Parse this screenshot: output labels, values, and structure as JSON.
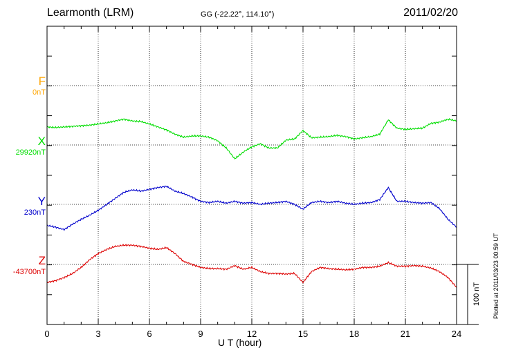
{
  "header": {
    "station": "Learmonth (LRM)",
    "coords": "GG (-22.22°, 114.10°)",
    "date": "2011/02/20"
  },
  "footer": {
    "plotted": "Plotted at 2011/03/23 00:59 UT"
  },
  "chart_data": {
    "type": "line",
    "xlabel": "U T (hour)",
    "xlim": [
      0,
      24
    ],
    "xticks": [
      0,
      3,
      6,
      9,
      12,
      15,
      18,
      21,
      24
    ],
    "grid": true,
    "scale_bar": {
      "label": "100 nT",
      "value_nT": 100
    },
    "components": [
      {
        "name": "F",
        "baseline_label": "0nT",
        "color": "#ffa500"
      },
      {
        "name": "X",
        "baseline_label": "29920nT",
        "color": "#00dd00"
      },
      {
        "name": "Y",
        "baseline_label": "230nT",
        "color": "#0000cc"
      },
      {
        "name": "Z",
        "baseline_label": "-43700nT",
        "color": "#dd0000"
      }
    ],
    "series": [
      {
        "name": "X",
        "color": "#00dd00",
        "baseline_nT": 29920,
        "x": [
          0,
          0.5,
          1,
          1.5,
          2,
          2.5,
          3,
          3.5,
          4,
          4.5,
          5,
          5.5,
          6,
          6.5,
          7,
          7.5,
          8,
          8.5,
          9,
          9.5,
          10,
          10.5,
          11,
          11.5,
          12,
          12.5,
          13,
          13.5,
          14,
          14.5,
          15,
          15.5,
          16,
          16.5,
          17,
          17.5,
          18,
          18.5,
          19,
          19.5,
          20,
          20.5,
          21,
          21.5,
          22,
          22.5,
          23,
          23.5,
          24
        ],
        "y": [
          30,
          29,
          30,
          31,
          32,
          33,
          35,
          37,
          40,
          43,
          40,
          39,
          35,
          30,
          25,
          18,
          13,
          15,
          15,
          13,
          7,
          -5,
          -23,
          -12,
          -3,
          2,
          -5,
          -5,
          8,
          10,
          24,
          12,
          13,
          14,
          16,
          14,
          10,
          12,
          14,
          18,
          42,
          28,
          26,
          27,
          28,
          36,
          38,
          43,
          40
        ]
      },
      {
        "name": "Y",
        "color": "#0000cc",
        "baseline_nT": 230,
        "x": [
          0,
          0.5,
          1,
          1.5,
          2,
          2.5,
          3,
          3.5,
          4,
          4.5,
          5,
          5.5,
          6,
          6.5,
          7,
          7.5,
          8,
          8.5,
          9,
          9.5,
          10,
          10.5,
          11,
          11.5,
          12,
          12.5,
          13,
          13.5,
          14,
          14.5,
          15,
          15.5,
          16,
          16.5,
          17,
          17.5,
          18,
          18.5,
          19,
          19.5,
          20,
          20.5,
          21,
          21.5,
          22,
          22.5,
          23,
          23.5,
          24
        ],
        "y": [
          -35,
          -38,
          -42,
          -33,
          -25,
          -18,
          -10,
          0,
          10,
          20,
          24,
          22,
          25,
          28,
          30,
          22,
          18,
          12,
          5,
          3,
          5,
          2,
          5,
          2,
          3,
          0,
          2,
          3,
          5,
          0,
          -8,
          3,
          5,
          3,
          5,
          2,
          0,
          2,
          3,
          8,
          28,
          5,
          5,
          3,
          2,
          3,
          -7,
          -25,
          -38
        ]
      },
      {
        "name": "Z",
        "color": "#dd0000",
        "baseline_nT": -43700,
        "x": [
          0,
          0.5,
          1,
          1.5,
          2,
          2.5,
          3,
          3.5,
          4,
          4.5,
          5,
          5.5,
          6,
          6.5,
          7,
          7.5,
          8,
          8.5,
          9,
          9.5,
          10,
          10.5,
          11,
          11.5,
          12,
          12.5,
          13,
          13.5,
          14,
          14.5,
          15,
          15.5,
          16,
          16.5,
          17,
          17.5,
          18,
          18.5,
          19,
          19.5,
          20,
          20.5,
          21,
          21.5,
          22,
          22.5,
          23,
          23.5,
          24
        ],
        "y": [
          -30,
          -27,
          -22,
          -15,
          -5,
          8,
          18,
          25,
          30,
          32,
          32,
          30,
          27,
          25,
          28,
          18,
          5,
          0,
          -5,
          -7,
          -7,
          -8,
          -2,
          -8,
          -5,
          -12,
          -15,
          -15,
          -16,
          -15,
          -30,
          -12,
          -5,
          -7,
          -8,
          -9,
          -8,
          -5,
          -5,
          -3,
          3,
          -3,
          -3,
          -2,
          -3,
          -6,
          -12,
          -22,
          -38
        ]
      }
    ]
  }
}
